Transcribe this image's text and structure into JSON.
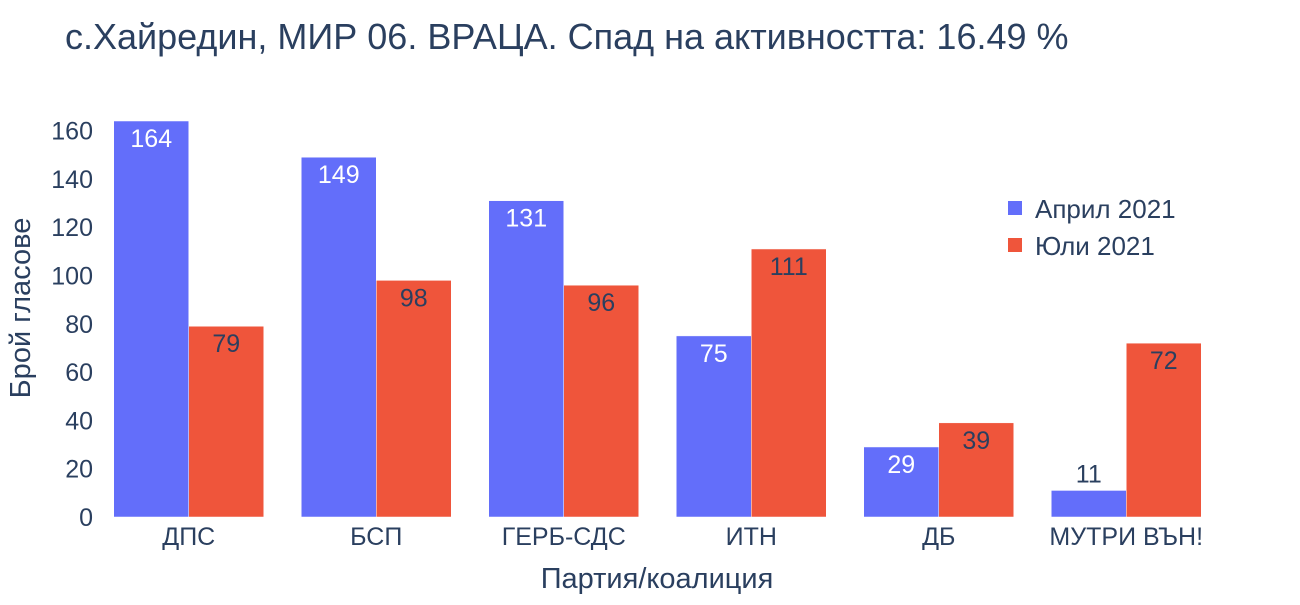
{
  "chart_data": {
    "type": "bar",
    "title": "с.Хайредин, МИР 06. ВРАЦА. Спад на активността: 16.49 %",
    "xlabel": "Партия/коалиция",
    "ylabel": "Брой гласове",
    "categories": [
      "ДПС",
      "БСП",
      "ГЕРБ-СДС",
      "ИТН",
      "ДБ",
      "МУТРИ ВЪН!"
    ],
    "series": [
      {
        "name": "Април 2021",
        "values": [
          164,
          149,
          131,
          75,
          29,
          11
        ],
        "color": "#636efa"
      },
      {
        "name": "Юли 2021",
        "values": [
          79,
          98,
          96,
          111,
          39,
          72
        ],
        "color": "#ef553b"
      }
    ],
    "ylim": [
      0,
      164
    ],
    "yticks": [
      0,
      20,
      40,
      60,
      80,
      100,
      120,
      140,
      160
    ],
    "grid": false,
    "legend_position": "top-right"
  }
}
